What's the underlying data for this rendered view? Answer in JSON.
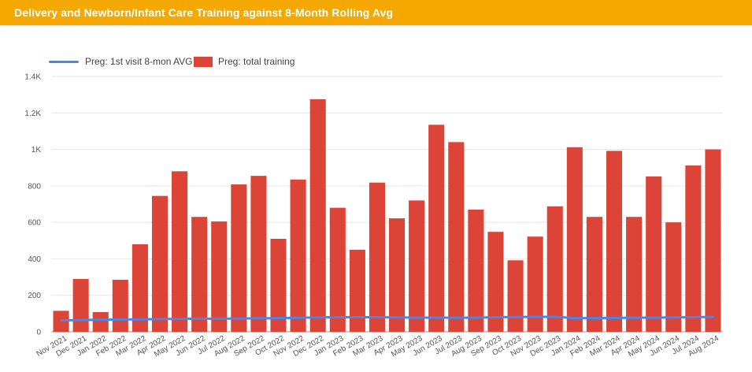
{
  "header": {
    "title": "Delivery and Newborn/Infant Care Training against 8-Month Rolling Avg"
  },
  "colors": {
    "header_bg": "#f5a800",
    "bar": "#db4437",
    "line": "#4a86e8",
    "grid": "#e6e6e6"
  },
  "chart_data": {
    "type": "bar",
    "title": "Delivery and Newborn/Infant Care Training against 8-Month Rolling Avg",
    "xlabel": "",
    "ylabel": "",
    "ylim": [
      0,
      1400
    ],
    "yticks": [
      0,
      200,
      400,
      600,
      800,
      1000,
      1200,
      1400
    ],
    "ytick_labels": [
      "0",
      "200",
      "400",
      "600",
      "800",
      "1K",
      "1.2K",
      "1.4K"
    ],
    "grid": true,
    "legend_position": "top-left",
    "categories": [
      "Nov 2021",
      "Dec 2021",
      "Jan 2022",
      "Feb 2022",
      "Mar 2022",
      "Apr 2022",
      "May 2022",
      "Jun 2022",
      "Jul 2022",
      "Aug 2022",
      "Sep 2022",
      "Oct 2022",
      "Nov 2022",
      "Dec 2022",
      "Jan 2023",
      "Feb 2023",
      "Mar 2023",
      "Apr 2023",
      "May 2023",
      "Jun 2023",
      "Jul 2023",
      "Aug 2023",
      "Sep 2023",
      "Oct 2023",
      "Nov 2023",
      "Dec 2023",
      "Jan 2024",
      "Feb 2024",
      "Mar 2024",
      "Apr 2024",
      "May 2024",
      "Jun 2024",
      "Jul 2024",
      "Aug 2024"
    ],
    "series": [
      {
        "name": "Preg: 1st visit 8-mon AVG",
        "type": "line",
        "color": "#4a86e8",
        "values": [
          62,
          65,
          66,
          68,
          68,
          70,
          71,
          72,
          72,
          73,
          74,
          75,
          77,
          79,
          80,
          80,
          80,
          79,
          78,
          78,
          77,
          78,
          80,
          81,
          82,
          82,
          75,
          75,
          76,
          77,
          78,
          79,
          80,
          82
        ]
      },
      {
        "name": "Preg: total training",
        "type": "bar",
        "color": "#db4437",
        "values": [
          115,
          290,
          108,
          285,
          480,
          745,
          880,
          630,
          605,
          808,
          855,
          510,
          835,
          1275,
          680,
          450,
          818,
          622,
          720,
          1135,
          1040,
          670,
          548,
          392,
          522,
          688,
          1012,
          630,
          992,
          630,
          852,
          600,
          912,
          1000
        ]
      }
    ]
  }
}
